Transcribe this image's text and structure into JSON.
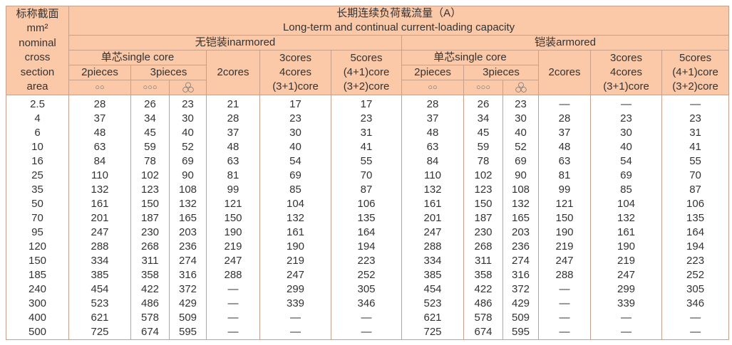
{
  "header": {
    "area_label": [
      "标称截面",
      "mm²",
      "nominal",
      "cross",
      "section",
      "area"
    ],
    "title_cn": "长期连续负荷载流量（A）",
    "title_en": "Long-term and continual current-loading capacity",
    "groups": [
      {
        "label": "无铠装inarmored",
        "single_core": "单芯single core",
        "two_pieces": "2pieces",
        "three_pieces": "3pieces",
        "two_cores": "2cores",
        "three_cores": [
          "3cores",
          "4cores",
          "(3+1)core"
        ],
        "five_cores": [
          "5cores",
          "(4+1)core",
          "(3+2)core"
        ],
        "symbols": [
          "○○",
          "○○○"
        ]
      },
      {
        "label": "铠装armored",
        "single_core": "单芯single core",
        "two_pieces": "2pieces",
        "three_pieces": "3pieces",
        "two_cores": "2cores",
        "three_cores": [
          "3cores",
          "4cores",
          "(3+1)core"
        ],
        "five_cores": [
          "5cores",
          "(4+1)core",
          "(3+2)core"
        ],
        "symbols": [
          "○○",
          "○○○"
        ]
      }
    ]
  },
  "table": {
    "rows": [
      [
        2.5,
        28,
        26,
        23,
        21,
        17,
        17,
        28,
        26,
        23,
        "—",
        "—",
        "—"
      ],
      [
        4,
        37,
        34,
        30,
        28,
        23,
        23,
        37,
        34,
        30,
        28,
        23,
        23
      ],
      [
        6,
        48,
        45,
        40,
        37,
        30,
        31,
        48,
        45,
        40,
        37,
        30,
        31
      ],
      [
        10,
        63,
        59,
        52,
        48,
        40,
        41,
        63,
        59,
        52,
        48,
        40,
        41
      ],
      [
        16,
        84,
        78,
        69,
        63,
        54,
        55,
        84,
        78,
        69,
        63,
        54,
        55
      ],
      [
        25,
        110,
        102,
        90,
        81,
        69,
        70,
        110,
        102,
        90,
        81,
        69,
        70
      ],
      [
        35,
        132,
        123,
        108,
        99,
        85,
        87,
        132,
        123,
        108,
        99,
        85,
        87
      ],
      [
        50,
        161,
        150,
        132,
        121,
        104,
        106,
        161,
        150,
        132,
        121,
        104,
        106
      ],
      [
        70,
        201,
        187,
        165,
        150,
        132,
        135,
        201,
        187,
        165,
        150,
        132,
        135
      ],
      [
        95,
        247,
        230,
        203,
        190,
        161,
        164,
        247,
        230,
        203,
        190,
        161,
        164
      ],
      [
        120,
        288,
        268,
        236,
        219,
        190,
        194,
        288,
        268,
        236,
        219,
        190,
        194
      ],
      [
        150,
        334,
        311,
        274,
        247,
        219,
        223,
        334,
        311,
        274,
        247,
        219,
        223
      ],
      [
        185,
        385,
        358,
        316,
        288,
        247,
        252,
        385,
        358,
        316,
        288,
        247,
        252
      ],
      [
        240,
        454,
        422,
        372,
        "—",
        299,
        305,
        454,
        422,
        372,
        "—",
        299,
        305
      ],
      [
        300,
        523,
        486,
        429,
        "—",
        339,
        346,
        523,
        486,
        429,
        "—",
        339,
        346
      ],
      [
        400,
        621,
        578,
        509,
        "—",
        "—",
        "—",
        621,
        578,
        509,
        "—",
        "—",
        "—"
      ],
      [
        500,
        725,
        674,
        595,
        "—",
        "—",
        "—",
        725,
        674,
        595,
        "—",
        "—",
        "—"
      ]
    ]
  }
}
